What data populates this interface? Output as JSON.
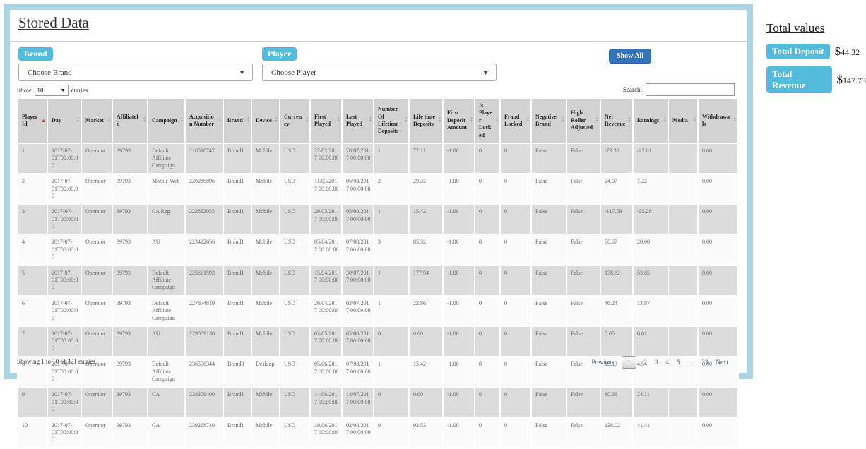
{
  "page": {
    "title": "Stored Data"
  },
  "icons": {
    "dropdown_caret": "▼",
    "sort_asc": "▲",
    "sort_desc": "▼"
  },
  "colors": {
    "accent_cyan": "#53bcdc",
    "button_blue": "#3473b5",
    "frame_blue": "#abd3e2",
    "sort_active": "#c23b22"
  },
  "filters": {
    "brand_label": "Brand",
    "brand_value": "Choose Brand",
    "player_label": "Player",
    "player_value": "Choose Player",
    "show_all_label": "Show All"
  },
  "controls": {
    "show_label": "Show",
    "entries_value": "10",
    "entries_suffix": "entries",
    "search_label": "Search:",
    "search_value": ""
  },
  "table": {
    "sorted_column": "Player Id",
    "sort_direction": "asc",
    "columns": [
      "Player Id",
      "Day",
      "Market",
      "AffiliateId",
      "Campaign",
      "Acquisition Number",
      "Brand",
      "Device",
      "Currency",
      "First Played",
      "Last Played",
      "Number Of Lifetime Deposits",
      "Life time Deposits",
      "First Deposit Amount",
      "Is Player Locked",
      "Fraud Locked",
      "Negative Brand",
      "High Roller Adjusted",
      "Net Revenue",
      "Earnings",
      "Media",
      "Withdrawals"
    ],
    "rows": [
      [
        "1",
        "2017-07-01T00:00:00",
        "Operator",
        "39793",
        "Default Affiliate Campaign",
        "218510747",
        "Brand1",
        "Mobile",
        "USD",
        "22/02/2017 00:00:00",
        "28/07/2017 00:00:00",
        "1",
        "77.11",
        "-1.00",
        "0",
        "0",
        "False",
        "False",
        "-73.36",
        "-22.01",
        "",
        "0.00"
      ],
      [
        "2",
        "2017-07-01T00:00:00",
        "Operator",
        "39793",
        "Mobile Web",
        "220286896",
        "Brand1",
        "Mobile",
        "USD",
        "11/03/2017 00:00:00",
        "06/08/2017 00:00:00",
        "2",
        "29.32",
        "-1.00",
        "0",
        "0",
        "False",
        "False",
        "24.07",
        "7.22",
        "",
        "0.00"
      ],
      [
        "3",
        "2017-07-01T00:00:00",
        "Operator",
        "39793",
        "CA Reg",
        "222832055",
        "Brand1",
        "Mobile",
        "USD",
        "29/03/2017 00:00:00",
        "05/08/2017 00:00:00",
        "1",
        "15.42",
        "-1.00",
        "0",
        "0",
        "False",
        "False",
        "-117.59",
        "-35.28",
        "",
        "0.00"
      ],
      [
        "4",
        "2017-07-01T00:00:00",
        "Operator",
        "39793",
        "AU",
        "223422656",
        "Brand1",
        "Mobile",
        "USD",
        "05/04/2017 00:00:00",
        "07/08/2017 00:00:00",
        "3",
        "85.32",
        "-1.00",
        "0",
        "0",
        "False",
        "False",
        "66.67",
        "20.00",
        "",
        "0.00"
      ],
      [
        "5",
        "2017-07-01T00:00:00",
        "Operator",
        "39793",
        "Default Affiliate Campaign",
        "225661593",
        "Brand1",
        "Mobile",
        "USD",
        "15/04/2017 00:00:00",
        "30/07/2017 00:00:00",
        "1",
        "177.94",
        "-1.00",
        "0",
        "0",
        "False",
        "False",
        "178.82",
        "53.65",
        "",
        "0.00"
      ],
      [
        "6",
        "2017-07-01T00:00:00",
        "Operator",
        "39793",
        "Default Affiliate Campaign",
        "227874819",
        "Brand1",
        "Mobile",
        "USD",
        "26/04/2017 00:00:00",
        "02/07/2017 00:00:00",
        "1",
        "22.86",
        "-1.00",
        "0",
        "0",
        "False",
        "False",
        "46.24",
        "13.87",
        "",
        "0.00"
      ],
      [
        "7",
        "2017-07-01T00:00:00",
        "Operator",
        "39793",
        "AU",
        "229009130",
        "Brand1",
        "Mobile",
        "USD",
        "03/05/2017 00:00:00",
        "05/08/2017 00:00:00",
        "0",
        "0.00",
        "-1.00",
        "0",
        "0",
        "False",
        "False",
        "0.05",
        "0.01",
        "",
        "0.00"
      ],
      [
        "8",
        "2017-07-01T00:00:00",
        "Operator",
        "39793",
        "Default Affiliate Campaign",
        "236596344",
        "Brand3",
        "Desktop",
        "USD",
        "05/06/2017 00:00:00",
        "07/08/2017 00:00:00",
        "1",
        "15.42",
        "-1.00",
        "0",
        "0",
        "False",
        "False",
        "15.13",
        "4.54",
        "",
        "0.00"
      ],
      [
        "9",
        "2017-07-01T00:00:00",
        "Operator",
        "39793",
        "CA",
        "238309400",
        "Brand1",
        "Mobile",
        "USD",
        "14/06/2017 00:00:00",
        "14/07/2017 00:00:00",
        "0",
        "0.00",
        "-1.00",
        "0",
        "0",
        "False",
        "False",
        "80.38",
        "24.11",
        "",
        "0.00"
      ],
      [
        "10",
        "2017-07-01T00:00:00",
        "Operator",
        "39793",
        "CA",
        "239268740",
        "Brand1",
        "Mobile",
        "USD",
        "19/06/2017 00:00:00",
        "02/08/2017 00:00:00",
        "9",
        "92.53",
        "-1.00",
        "0",
        "0",
        "False",
        "False",
        "138.02",
        "41.41",
        "",
        "0.00"
      ]
    ]
  },
  "footer": {
    "info": "Showing 1 to 10 of 321 entries",
    "pagination": {
      "previous": "Previous",
      "pages": [
        "1",
        "2",
        "3",
        "4",
        "5",
        "…",
        "33"
      ],
      "active_page": "1",
      "next": "Next"
    }
  },
  "totals": {
    "title": "Total values",
    "items": [
      {
        "label": "Total Deposit",
        "currency": "$",
        "value": "44.32"
      },
      {
        "label": "Total Revenue",
        "currency": "$",
        "value": "147.73"
      }
    ]
  }
}
